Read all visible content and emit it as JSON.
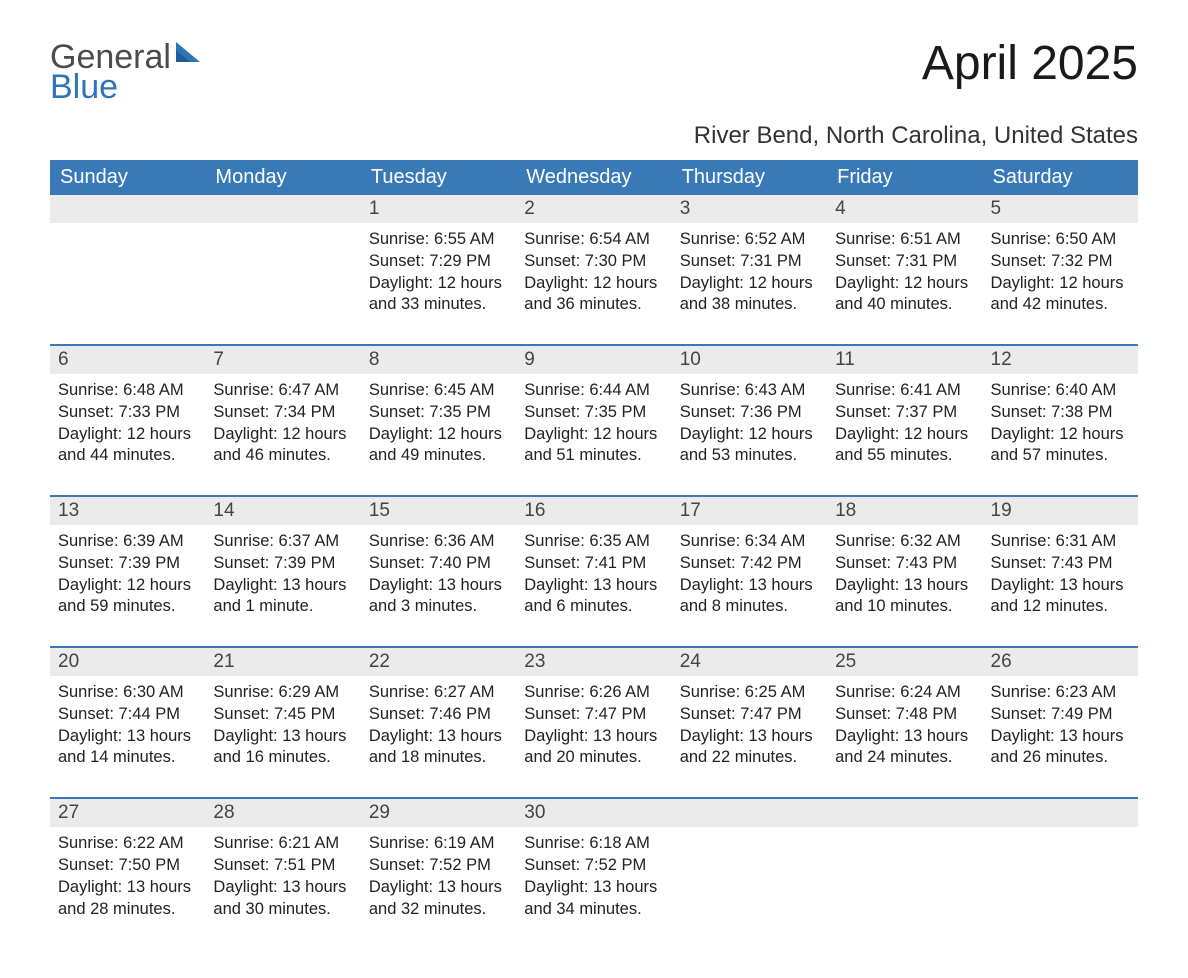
{
  "brand": {
    "part1": "General",
    "part2": "Blue",
    "color1": "#4b4b4b",
    "color2": "#2e75b6",
    "sail_color": "#2e75b6"
  },
  "title": "April 2025",
  "location": "River Bend, North Carolina, United States",
  "header_bg": "#3a79b7",
  "header_fg": "#ffffff",
  "daynum_bg": "#ebebeb",
  "border_color": "#3a79b7",
  "text_color": "#222222",
  "days": [
    "Sunday",
    "Monday",
    "Tuesday",
    "Wednesday",
    "Thursday",
    "Friday",
    "Saturday"
  ],
  "weeks": [
    {
      "nums": [
        "",
        "",
        "1",
        "2",
        "3",
        "4",
        "5"
      ],
      "cells": [
        "",
        "",
        "Sunrise: 6:55 AM\nSunset: 7:29 PM\nDaylight: 12 hours and 33 minutes.",
        "Sunrise: 6:54 AM\nSunset: 7:30 PM\nDaylight: 12 hours and 36 minutes.",
        "Sunrise: 6:52 AM\nSunset: 7:31 PM\nDaylight: 12 hours and 38 minutes.",
        "Sunrise: 6:51 AM\nSunset: 7:31 PM\nDaylight: 12 hours and 40 minutes.",
        "Sunrise: 6:50 AM\nSunset: 7:32 PM\nDaylight: 12 hours and 42 minutes."
      ]
    },
    {
      "nums": [
        "6",
        "7",
        "8",
        "9",
        "10",
        "11",
        "12"
      ],
      "cells": [
        "Sunrise: 6:48 AM\nSunset: 7:33 PM\nDaylight: 12 hours and 44 minutes.",
        "Sunrise: 6:47 AM\nSunset: 7:34 PM\nDaylight: 12 hours and 46 minutes.",
        "Sunrise: 6:45 AM\nSunset: 7:35 PM\nDaylight: 12 hours and 49 minutes.",
        "Sunrise: 6:44 AM\nSunset: 7:35 PM\nDaylight: 12 hours and 51 minutes.",
        "Sunrise: 6:43 AM\nSunset: 7:36 PM\nDaylight: 12 hours and 53 minutes.",
        "Sunrise: 6:41 AM\nSunset: 7:37 PM\nDaylight: 12 hours and 55 minutes.",
        "Sunrise: 6:40 AM\nSunset: 7:38 PM\nDaylight: 12 hours and 57 minutes."
      ]
    },
    {
      "nums": [
        "13",
        "14",
        "15",
        "16",
        "17",
        "18",
        "19"
      ],
      "cells": [
        "Sunrise: 6:39 AM\nSunset: 7:39 PM\nDaylight: 12 hours and 59 minutes.",
        "Sunrise: 6:37 AM\nSunset: 7:39 PM\nDaylight: 13 hours and 1 minute.",
        "Sunrise: 6:36 AM\nSunset: 7:40 PM\nDaylight: 13 hours and 3 minutes.",
        "Sunrise: 6:35 AM\nSunset: 7:41 PM\nDaylight: 13 hours and 6 minutes.",
        "Sunrise: 6:34 AM\nSunset: 7:42 PM\nDaylight: 13 hours and 8 minutes.",
        "Sunrise: 6:32 AM\nSunset: 7:43 PM\nDaylight: 13 hours and 10 minutes.",
        "Sunrise: 6:31 AM\nSunset: 7:43 PM\nDaylight: 13 hours and 12 minutes."
      ]
    },
    {
      "nums": [
        "20",
        "21",
        "22",
        "23",
        "24",
        "25",
        "26"
      ],
      "cells": [
        "Sunrise: 6:30 AM\nSunset: 7:44 PM\nDaylight: 13 hours and 14 minutes.",
        "Sunrise: 6:29 AM\nSunset: 7:45 PM\nDaylight: 13 hours and 16 minutes.",
        "Sunrise: 6:27 AM\nSunset: 7:46 PM\nDaylight: 13 hours and 18 minutes.",
        "Sunrise: 6:26 AM\nSunset: 7:47 PM\nDaylight: 13 hours and 20 minutes.",
        "Sunrise: 6:25 AM\nSunset: 7:47 PM\nDaylight: 13 hours and 22 minutes.",
        "Sunrise: 6:24 AM\nSunset: 7:48 PM\nDaylight: 13 hours and 24 minutes.",
        "Sunrise: 6:23 AM\nSunset: 7:49 PM\nDaylight: 13 hours and 26 minutes."
      ]
    },
    {
      "nums": [
        "27",
        "28",
        "29",
        "30",
        "",
        "",
        ""
      ],
      "cells": [
        "Sunrise: 6:22 AM\nSunset: 7:50 PM\nDaylight: 13 hours and 28 minutes.",
        "Sunrise: 6:21 AM\nSunset: 7:51 PM\nDaylight: 13 hours and 30 minutes.",
        "Sunrise: 6:19 AM\nSunset: 7:52 PM\nDaylight: 13 hours and 32 minutes.",
        "Sunrise: 6:18 AM\nSunset: 7:52 PM\nDaylight: 13 hours and 34 minutes.",
        "",
        "",
        ""
      ]
    }
  ]
}
